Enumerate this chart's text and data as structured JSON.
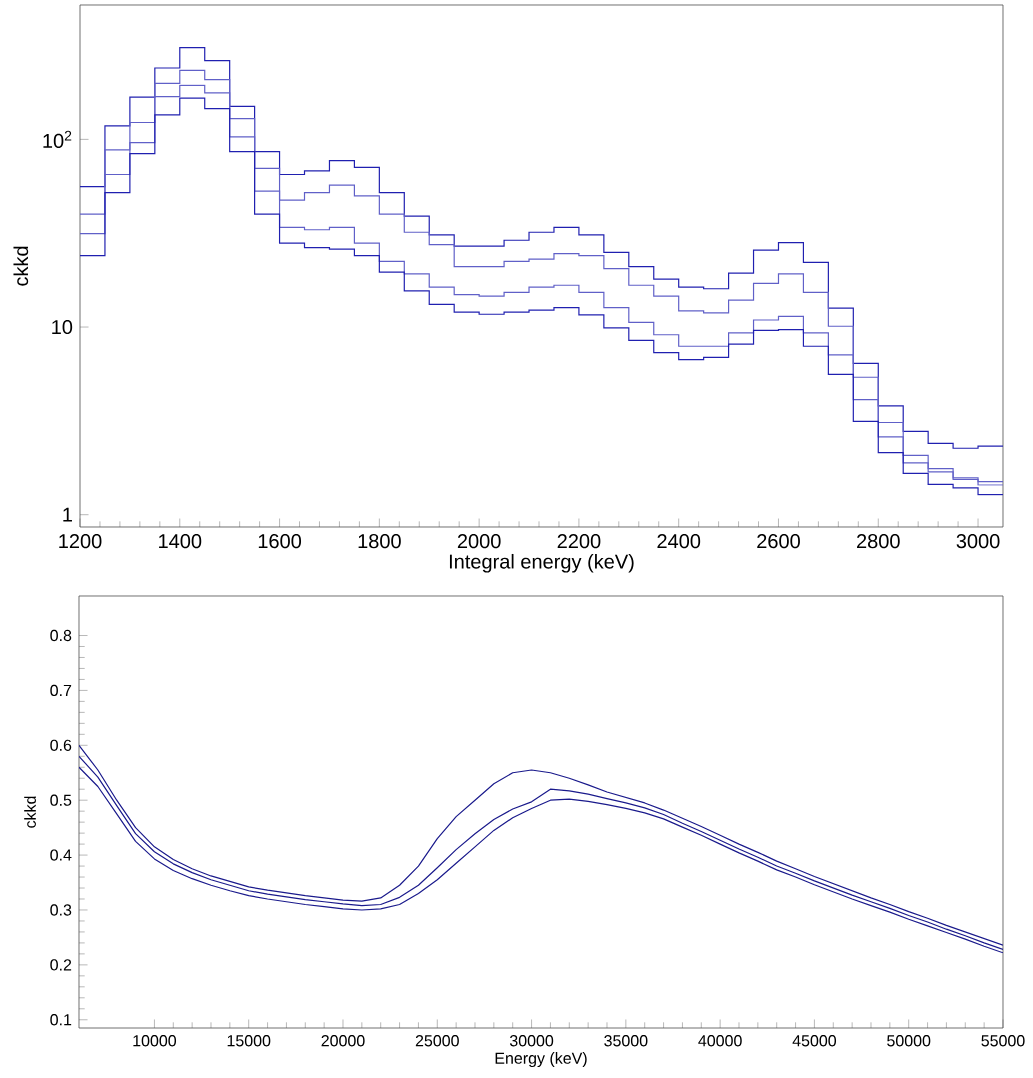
{
  "chart_data": [
    {
      "type": "step",
      "xlabel": "Integral energy (keV)",
      "ylabel": "ckkd",
      "log": true,
      "x": [
        1200,
        1250,
        1300,
        1350,
        1400,
        1450,
        1500,
        1550,
        1600,
        1650,
        1700,
        1750,
        1800,
        1850,
        1900,
        1950,
        2000,
        2050,
        2100,
        2150,
        2200,
        2250,
        2300,
        2350,
        2400,
        2450,
        2500,
        2550,
        2600,
        2650,
        2700,
        2750,
        2800,
        2850,
        2900,
        2950,
        3000,
        3050
      ],
      "xlim": [
        1200,
        3050
      ],
      "ylim": [
        0.86,
        520
      ],
      "xticks": [
        1200,
        1400,
        1600,
        1800,
        2000,
        2200,
        2400,
        2600,
        2800,
        3000
      ],
      "yticks": [
        1,
        10,
        {
          "value": 100,
          "label": "10$^{2}$"
        }
      ],
      "series": [
        {
          "color": "#2020b0",
          "values": [
            56,
            118,
            168,
            240,
            308,
            263,
            150,
            86,
            65,
            68,
            77,
            71,
            52,
            39,
            31,
            27,
            27,
            29,
            32,
            34,
            31,
            25,
            21,
            18,
            16.3,
            16,
            19.4,
            25.7,
            28.2,
            22.1,
            12.6,
            6.4,
            3.8,
            2.78,
            2.4,
            2.26,
            2.32,
            2.32
          ]
        },
        {
          "color": "#6060c8",
          "values": [
            40,
            88,
            123,
            199,
            233,
            208,
            129,
            70,
            47.5,
            52,
            57,
            50,
            40,
            32,
            27.5,
            21,
            21,
            22.4,
            23,
            24.6,
            24,
            20.5,
            16.7,
            14.6,
            12.2,
            11.9,
            13.9,
            17.1,
            19.2,
            15.3,
            10.1,
            5.4,
            3.1,
            2.07,
            1.76,
            1.57,
            1.5,
            1.5
          ]
        },
        {
          "color": "#6060c8",
          "values": [
            31.5,
            65,
            96,
            169,
            194,
            177,
            103,
            53,
            34,
            33,
            34,
            28,
            22.4,
            19.2,
            16.3,
            14.9,
            14.6,
            15.3,
            16.3,
            16.7,
            15.3,
            12.7,
            10.6,
            9.1,
            7.9,
            7.9,
            9.3,
            10.9,
            11.4,
            9.3,
            7.1,
            4.1,
            2.6,
            1.89,
            1.69,
            1.54,
            1.44,
            1.44
          ]
        },
        {
          "color": "#2020b0",
          "values": [
            24,
            52,
            84,
            135,
            166,
            146,
            86,
            40,
            28,
            26.5,
            26,
            24,
            19.6,
            15.6,
            13.2,
            12,
            11.7,
            12,
            12.3,
            12.7,
            11.6,
            9.9,
            8.5,
            7.3,
            6.7,
            6.9,
            8.1,
            9.6,
            9.7,
            7.9,
            5.6,
            3.14,
            2.14,
            1.66,
            1.45,
            1.39,
            1.28,
            1.28
          ]
        }
      ]
    },
    {
      "type": "line",
      "xlabel": "Energy (keV)",
      "ylabel": "ckkd",
      "x": [
        6000,
        7000,
        8000,
        9000,
        10000,
        11000,
        12000,
        13000,
        14000,
        15000,
        16000,
        17000,
        18000,
        19000,
        20000,
        21000,
        22000,
        23000,
        24000,
        25000,
        26000,
        27000,
        28000,
        29000,
        30000,
        31000,
        32000,
        33000,
        34000,
        35000,
        36000,
        37000,
        38000,
        39000,
        40000,
        41000,
        42000,
        43000,
        44000,
        45000,
        46000,
        47000,
        48000,
        49000,
        50000,
        51000,
        52000,
        53000,
        54000,
        55000
      ],
      "xlim": [
        6000,
        55000
      ],
      "ylim": [
        0.085,
        0.872
      ],
      "xticks": [
        10000,
        15000,
        20000,
        25000,
        30000,
        35000,
        40000,
        45000,
        50000,
        55000
      ],
      "yticks": [
        0.1,
        0.2,
        0.3,
        0.4,
        0.5,
        0.6,
        0.7,
        0.8
      ],
      "series": [
        {
          "color": "#1a1a8c",
          "values": [
            0.6,
            0.555,
            0.5,
            0.45,
            0.415,
            0.392,
            0.375,
            0.362,
            0.352,
            0.342,
            0.336,
            0.331,
            0.326,
            0.322,
            0.318,
            0.316,
            0.322,
            0.345,
            0.38,
            0.43,
            0.47,
            0.5,
            0.53,
            0.55,
            0.555,
            0.55,
            0.54,
            0.528,
            0.515,
            0.505,
            0.495,
            0.482,
            0.467,
            0.452,
            0.436,
            0.42,
            0.405,
            0.389,
            0.375,
            0.361,
            0.348,
            0.335,
            0.322,
            0.31,
            0.297,
            0.285,
            0.272,
            0.26,
            0.248,
            0.236
          ]
        },
        {
          "color": "#1a1a8c",
          "values": [
            0.58,
            0.542,
            0.49,
            0.439,
            0.406,
            0.384,
            0.368,
            0.355,
            0.345,
            0.335,
            0.329,
            0.324,
            0.319,
            0.315,
            0.311,
            0.308,
            0.31,
            0.323,
            0.345,
            0.377,
            0.41,
            0.439,
            0.465,
            0.484,
            0.497,
            0.52,
            0.517,
            0.511,
            0.503,
            0.495,
            0.486,
            0.474,
            0.458,
            0.443,
            0.427,
            0.411,
            0.396,
            0.38,
            0.367,
            0.353,
            0.34,
            0.327,
            0.315,
            0.303,
            0.29,
            0.278,
            0.265,
            0.253,
            0.24,
            0.228
          ]
        },
        {
          "color": "#1a1a8c",
          "values": [
            0.56,
            0.525,
            0.475,
            0.425,
            0.393,
            0.372,
            0.357,
            0.345,
            0.335,
            0.326,
            0.32,
            0.315,
            0.31,
            0.306,
            0.302,
            0.3,
            0.302,
            0.31,
            0.33,
            0.355,
            0.385,
            0.415,
            0.445,
            0.468,
            0.485,
            0.5,
            0.502,
            0.498,
            0.492,
            0.485,
            0.477,
            0.466,
            0.451,
            0.436,
            0.42,
            0.404,
            0.389,
            0.373,
            0.36,
            0.346,
            0.333,
            0.32,
            0.308,
            0.296,
            0.283,
            0.271,
            0.259,
            0.247,
            0.234,
            0.222
          ]
        }
      ]
    }
  ]
}
